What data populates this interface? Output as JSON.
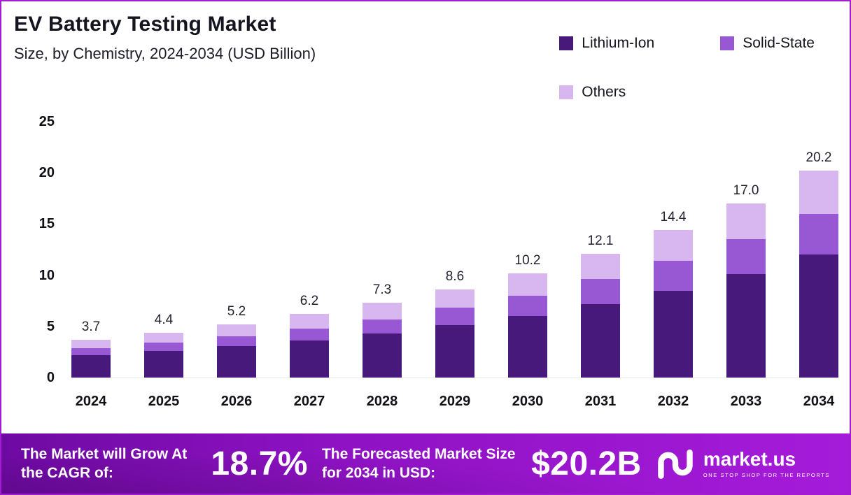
{
  "chart_data": {
    "type": "bar",
    "stacked": true,
    "title": "EV Battery Testing Market",
    "subtitle": "Size, by Chemistry, 2024-2034 (USD Billion)",
    "categories": [
      "2024",
      "2025",
      "2026",
      "2027",
      "2028",
      "2029",
      "2030",
      "2031",
      "2032",
      "2033",
      "2034"
    ],
    "series": [
      {
        "name": "Lithium-Ion",
        "color": "#46197B",
        "values": [
          2.2,
          2.6,
          3.1,
          3.6,
          4.3,
          5.1,
          6.0,
          7.2,
          8.5,
          10.1,
          12.0
        ]
      },
      {
        "name": "Solid-State",
        "color": "#9857D3",
        "values": [
          0.7,
          0.8,
          0.9,
          1.2,
          1.4,
          1.7,
          2.0,
          2.4,
          2.9,
          3.4,
          4.0
        ]
      },
      {
        "name": "Others",
        "color": "#D8B7F0",
        "values": [
          0.8,
          1.0,
          1.2,
          1.4,
          1.6,
          1.8,
          2.2,
          2.5,
          3.0,
          3.5,
          4.2
        ]
      }
    ],
    "totals": [
      3.7,
      4.4,
      5.2,
      6.2,
      7.3,
      8.6,
      10.2,
      12.1,
      14.4,
      17.0,
      20.2
    ],
    "xlabel": "",
    "ylabel": "",
    "ylim": [
      0,
      25
    ],
    "yticks": [
      0,
      5,
      10,
      15,
      20,
      25
    ],
    "grid": false,
    "legend_position": "top-right"
  },
  "banner": {
    "cagr_label": "The Market will Grow At the CAGR of:",
    "cagr_value": "18.7%",
    "forecast_label": "The Forecasted Market Size for 2034 in USD:",
    "forecast_value": "$20.2B",
    "brand": "market.us",
    "brand_tagline": "ONE STOP SHOP FOR THE REPORTS"
  },
  "icons": {
    "logo": "marketus-monogram-icon"
  },
  "colors": {
    "frame_border": "#A21CD3",
    "banner_gradient_start": "#6E0AA2",
    "banner_gradient_end": "#A51BD9",
    "text_dark": "#15151f"
  }
}
